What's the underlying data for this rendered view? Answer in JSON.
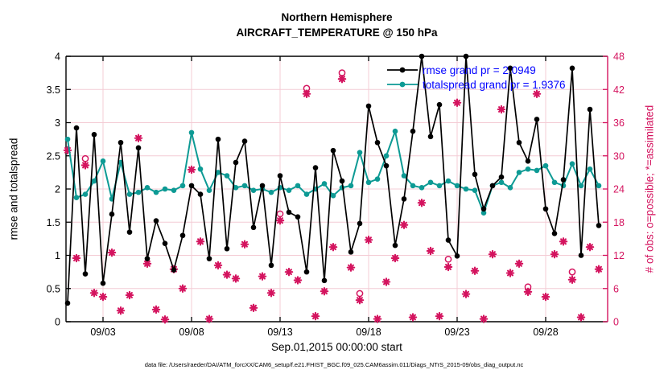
{
  "figure": {
    "title_line1": "Northern Hemisphere",
    "title_line2": "AIRCRAFT_TEMPERATURE @ 150 hPa",
    "xlabel": "Sep.01,2015 00:00:00 start",
    "ylabel_left": "rmse and totalspread",
    "ylabel_right": "# of obs: o=possible; *=assimilated",
    "caption": "data file: /Users/raeder/DAI/ATM_forcXX/CAM6_setup/f.e21.FHIST_BGC.f09_025.CAM6assim.011/Diags_NTrS_2015-09/obs_diag_output.nc",
    "legend": [
      {
        "label": "rmse grand pr = 2.0949",
        "series": "rmse"
      },
      {
        "label": "totalspread grand pr = 1.9376",
        "series": "totalspread"
      }
    ]
  },
  "colors": {
    "rmse": "#000000",
    "totalspread": "#0d9a94",
    "obs": "#d4145f",
    "legend_text": "#0000ff",
    "grid": "#f4ccd5",
    "axis": "#000000",
    "right_axis": "#d4145f"
  },
  "chart_data": {
    "type": "line",
    "title": "Northern Hemisphere — AIRCRAFT_TEMPERATURE @ 150 hPa",
    "xlabel": "Sep.01,2015 00:00:00 start",
    "ylabel_left": "rmse and totalspread",
    "ylabel_right": "# of obs: o=possible; *=assimilated",
    "x_start_day": 0,
    "x_step_days": 0.5,
    "x_range_days": [
      -0.1,
      30.5
    ],
    "xticks": [
      {
        "day": 2,
        "label": "09/03"
      },
      {
        "day": 7,
        "label": "09/08"
      },
      {
        "day": 12,
        "label": "09/13"
      },
      {
        "day": 17,
        "label": "09/18"
      },
      {
        "day": 22,
        "label": "09/23"
      },
      {
        "day": 27,
        "label": "09/28"
      }
    ],
    "ylim_left": [
      0,
      4
    ],
    "yticks_left": [
      "0",
      "0.5",
      "1",
      "1.5",
      "2",
      "2.5",
      "3",
      "3.5",
      "4"
    ],
    "ylim_right": [
      0,
      48
    ],
    "yticks_right": [
      "0",
      "6",
      "12",
      "18",
      "24",
      "30",
      "36",
      "42",
      "48"
    ],
    "grid": true,
    "legend_position": "upper right inside",
    "series": [
      {
        "name": "rmse",
        "grand_pr": 2.0949,
        "axis": "left",
        "marker": "filled-circle",
        "values": [
          0.28,
          2.92,
          0.72,
          2.82,
          0.58,
          1.62,
          2.7,
          1.35,
          2.62,
          0.95,
          1.52,
          1.18,
          0.78,
          1.3,
          2.05,
          1.92,
          0.95,
          2.75,
          1.1,
          2.4,
          2.72,
          1.42,
          2.05,
          0.85,
          2.2,
          1.65,
          1.58,
          0.75,
          2.32,
          0.62,
          2.58,
          2.12,
          1.05,
          1.48,
          3.25,
          2.7,
          2.35,
          1.15,
          1.85,
          2.87,
          4.0,
          2.79,
          3.27,
          1.23,
          0.99,
          4.0,
          2.22,
          1.7,
          2.05,
          2.18,
          3.82,
          2.7,
          2.42,
          3.05,
          1.7,
          1.33,
          2.14,
          3.82,
          1.0,
          3.2,
          1.45
        ]
      },
      {
        "name": "totalspread",
        "grand_pr": 1.9376,
        "axis": "left",
        "marker": "filled-circle",
        "values": [
          2.75,
          1.87,
          1.92,
          2.12,
          2.42,
          1.85,
          2.4,
          1.92,
          1.95,
          2.02,
          1.95,
          2.0,
          1.98,
          2.05,
          2.85,
          2.3,
          1.98,
          2.25,
          2.2,
          2.02,
          2.05,
          1.98,
          2.0,
          1.95,
          2.02,
          1.98,
          2.05,
          1.92,
          2.0,
          2.08,
          1.9,
          2.02,
          2.05,
          2.55,
          2.1,
          2.15,
          2.5,
          2.87,
          2.2,
          2.05,
          2.02,
          2.1,
          2.05,
          2.12,
          2.05,
          2.0,
          1.98,
          1.64,
          2.05,
          2.1,
          2.02,
          2.25,
          2.3,
          2.28,
          2.35,
          2.1,
          2.05,
          2.38,
          2.05,
          2.3,
          2.05
        ]
      }
    ],
    "obs_series": {
      "name": "# of obs",
      "axis": "right",
      "marker_possible": "open-circle",
      "marker_assimilated": "asterisk",
      "possible": [
        31,
        11.5,
        29.5,
        5.2,
        4.5,
        12.5,
        2,
        4.8,
        33.2,
        10.5,
        2.2,
        0.4,
        9.5,
        6,
        27.5,
        14.5,
        0.5,
        10.2,
        8.5,
        7.8,
        14,
        2.5,
        8.2,
        5.2,
        19.5,
        9,
        7.5,
        42.2,
        1,
        5.5,
        13.5,
        45,
        9.8,
        5.1,
        14.8,
        0.5,
        7.2,
        11.5,
        17.5,
        0.8,
        21.5,
        12.8,
        1,
        11.3,
        39.6,
        5,
        9.2,
        0.5,
        12.2,
        38.4,
        8.8,
        10.5,
        6.3,
        41.2,
        4.5,
        12.2,
        14.5,
        9,
        0.8,
        13.5,
        9.5
      ],
      "assimilated": [
        31,
        11.5,
        28.3,
        5.2,
        4.5,
        12.5,
        2,
        4.8,
        33.2,
        10.5,
        2.2,
        0.4,
        9.5,
        6,
        27.5,
        14.5,
        0.5,
        10.2,
        8.5,
        7.8,
        14,
        2.5,
        8.2,
        5.2,
        18.3,
        9,
        7.5,
        41.2,
        1,
        5.5,
        13.5,
        43.9,
        9.8,
        3.9,
        14.8,
        0.5,
        7.2,
        11.5,
        17.5,
        0.8,
        21.5,
        12.8,
        1,
        9.9,
        39.6,
        5,
        9.2,
        0.5,
        12.2,
        38.4,
        8.8,
        10.5,
        5.4,
        41.2,
        4.5,
        12.2,
        14.5,
        7.6,
        0.8,
        13.5,
        9.5
      ]
    }
  }
}
